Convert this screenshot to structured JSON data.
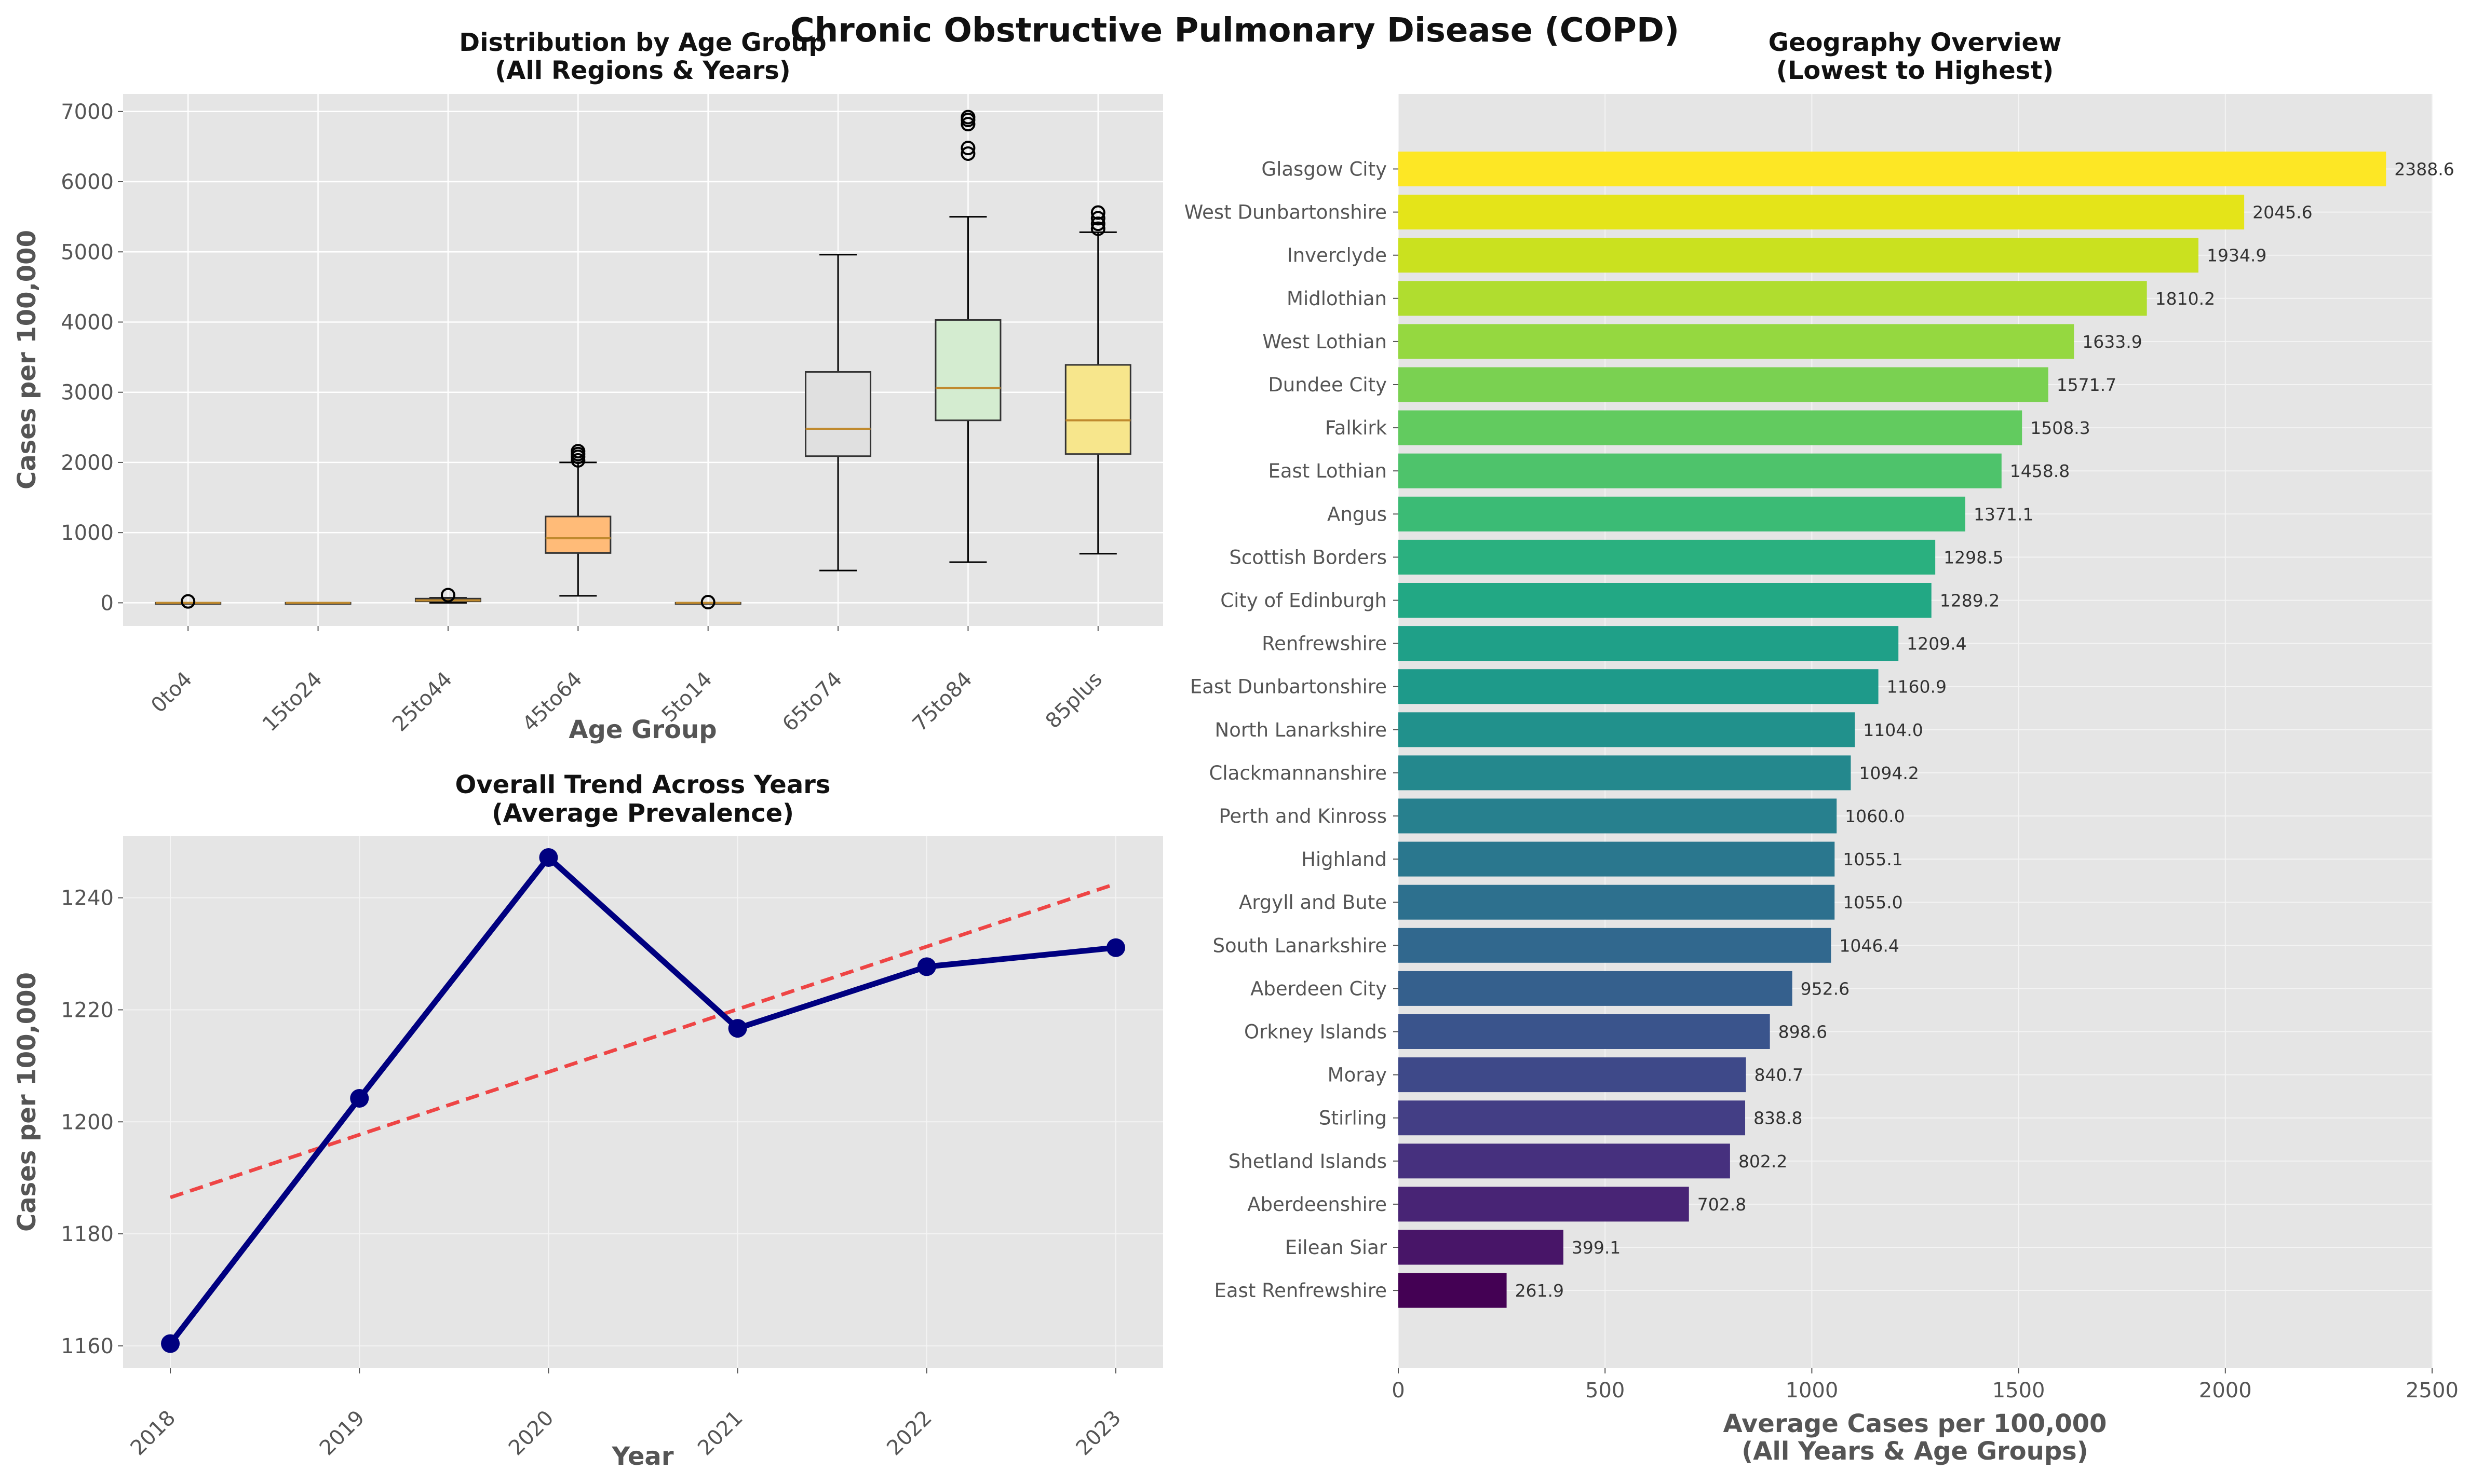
{
  "figure": {
    "suptitle": "Chronic Obstructive Pulmonary Disease (COPD)"
  },
  "chart_data": [
    {
      "type": "box",
      "title": "Distribution by Age Group",
      "subtitle": "(All Regions & Years)",
      "xlabel": "Age Group",
      "ylabel": "Cases per 100,000",
      "ylim": [
        -330,
        7250
      ],
      "yticks": [
        0,
        1000,
        2000,
        3000,
        4000,
        5000,
        6000,
        7000
      ],
      "grid": true,
      "categories": [
        "0to4",
        "15to24",
        "25to44",
        "45to64",
        "5to14",
        "65to74",
        "75to84",
        "85plus"
      ],
      "boxes": [
        {
          "category": "0to4",
          "whisker_low": 0,
          "q1": 0,
          "median": 0,
          "q3": 0,
          "whisker_high": 0,
          "outliers": [
            20
          ],
          "color": "#aec7e8"
        },
        {
          "category": "15to24",
          "whisker_low": 0,
          "q1": 0,
          "median": 0,
          "q3": 0,
          "whisker_high": 0,
          "outliers": [],
          "color": "#ffbb78"
        },
        {
          "category": "25to44",
          "whisker_low": 0,
          "q1": 20,
          "median": 35,
          "q3": 60,
          "whisker_high": 70,
          "outliers": [
            110
          ],
          "color": "#ffbb78"
        },
        {
          "category": "45to64",
          "whisker_low": 100,
          "q1": 710,
          "median": 920,
          "q3": 1230,
          "whisker_high": 2000,
          "outliers": [
            2030,
            2080,
            2120,
            2160
          ],
          "color": "#ffbb78"
        },
        {
          "category": "5to14",
          "whisker_low": 0,
          "q1": 0,
          "median": 0,
          "q3": 0,
          "whisker_high": 0,
          "outliers": [
            10
          ],
          "color": "#ffbb78"
        },
        {
          "category": "65to74",
          "whisker_low": 460,
          "q1": 2090,
          "median": 2480,
          "q3": 3290,
          "whisker_high": 4960,
          "outliers": [],
          "color": "#e0e0e0"
        },
        {
          "category": "75to84",
          "whisker_low": 580,
          "q1": 2600,
          "median": 3060,
          "q3": 4030,
          "whisker_high": 5500,
          "outliers": [
            6400,
            6480,
            6820,
            6880,
            6920
          ],
          "color": "#d4ecd0"
        },
        {
          "category": "85plus",
          "whisker_low": 700,
          "q1": 2120,
          "median": 2600,
          "q3": 3390,
          "whisker_high": 5280,
          "outliers": [
            5330,
            5400,
            5480,
            5560
          ],
          "color": "#f7e68c"
        }
      ]
    },
    {
      "type": "line",
      "title": "Overall Trend Across Years",
      "subtitle": "(Average Prevalence)",
      "xlabel": "Year",
      "ylabel": "Cases per 100,000",
      "x": [
        2018,
        2019,
        2020,
        2021,
        2022,
        2023
      ],
      "ylim": [
        1156,
        1251
      ],
      "yticks": [
        1160,
        1180,
        1200,
        1220,
        1240
      ],
      "grid": true,
      "series": [
        {
          "values": [
            1160.4,
            1204.2,
            1247.2,
            1216.7,
            1227.7,
            1231.1
          ],
          "color": "#000080",
          "style": "solid-with-markers"
        },
        {
          "values": [
            1186.5,
            1197.7,
            1208.9,
            1220.1,
            1231.3,
            1242.5
          ],
          "color": "#ee3333",
          "style": "dashed"
        }
      ]
    },
    {
      "type": "bar",
      "orientation": "horizontal",
      "title": "Geography Overview",
      "subtitle": "(Lowest to Highest)",
      "xlabel": "Average Cases per 100,000",
      "xlabel2": "(All Years & Age Groups)",
      "xlim": [
        0,
        2500
      ],
      "xticks": [
        0,
        500,
        1000,
        1500,
        2000,
        2500
      ],
      "grid": true,
      "colormap": "viridis",
      "categories": [
        "Glasgow City",
        "West Dunbartonshire",
        "Inverclyde",
        "Midlothian",
        "West Lothian",
        "Dundee City",
        "Falkirk",
        "East Lothian",
        "Angus",
        "Scottish Borders",
        "City of Edinburgh",
        "Renfrewshire",
        "East Dunbartonshire",
        "North Lanarkshire",
        "Clackmannanshire",
        "Perth and Kinross",
        "Highland",
        "Argyll and Bute",
        "South Lanarkshire",
        "Aberdeen City",
        "Orkney Islands",
        "Moray",
        "Stirling",
        "Shetland Islands",
        "Aberdeenshire",
        "Eilean Siar",
        "East Renfrewshire"
      ],
      "values": [
        2388.6,
        2045.6,
        1934.9,
        1810.2,
        1633.9,
        1571.7,
        1508.3,
        1458.8,
        1371.1,
        1298.5,
        1289.2,
        1209.4,
        1160.9,
        1104.0,
        1094.2,
        1060.0,
        1055.1,
        1055.0,
        1046.4,
        952.6,
        898.6,
        840.7,
        838.8,
        802.2,
        702.8,
        399.1,
        261.9
      ],
      "value_labels": [
        "2388.6",
        "2045.6",
        "1934.9",
        "1810.2",
        "1633.9",
        "1571.7",
        "1508.3",
        "1458.8",
        "1371.1",
        "1298.5",
        "1289.2",
        "1209.4",
        "1160.9",
        "1104.0",
        "1094.2",
        "1060.0",
        "1055.1",
        "1055.0",
        "1046.4",
        "952.6",
        "898.6",
        "840.7",
        "838.8",
        "802.2",
        "702.8",
        "399.1",
        "261.9"
      ],
      "colors": [
        "#fde725",
        "#e4e419",
        "#cae11f",
        "#b0dd2f",
        "#95d840",
        "#7ad151",
        "#62cb5f",
        "#4ec36b",
        "#3bbb75",
        "#2ab07f",
        "#22a884",
        "#1fa088",
        "#1e9a8a",
        "#21918c",
        "#24888d",
        "#27808e",
        "#2a778e",
        "#2d708e",
        "#31688e",
        "#35608d",
        "#3a548c",
        "#3e4989",
        "#433e85",
        "#46307e",
        "#482475",
        "#481568",
        "#440154"
      ]
    }
  ]
}
